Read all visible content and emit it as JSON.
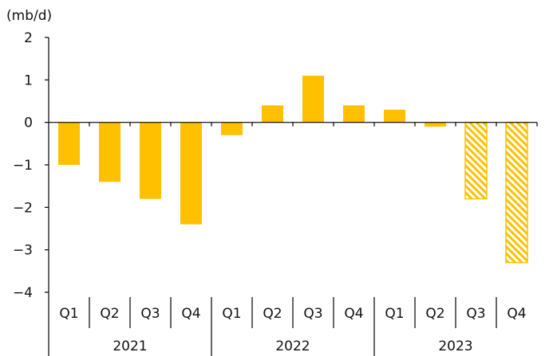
{
  "chart_data": {
    "type": "bar",
    "unit_label": "(mb/d)",
    "title": "",
    "xlabel": "",
    "ylabel": "",
    "ylim": [
      -4,
      2
    ],
    "yticks": [
      2,
      1,
      0,
      -1,
      -2,
      -3,
      -4
    ],
    "grid": false,
    "legend": "none",
    "categories": [
      "Q1",
      "Q2",
      "Q3",
      "Q4",
      "Q1",
      "Q2",
      "Q3",
      "Q4",
      "Q1",
      "Q2",
      "Q3",
      "Q4"
    ],
    "years": [
      {
        "label": "2021",
        "quarters": 4
      },
      {
        "label": "2022",
        "quarters": 4
      },
      {
        "label": "2023",
        "quarters": 4
      }
    ],
    "values": [
      -1.0,
      -1.4,
      -1.8,
      -2.4,
      -0.3,
      0.4,
      1.1,
      0.4,
      0.3,
      -0.1,
      -1.8,
      -3.3
    ],
    "hatched": [
      false,
      false,
      false,
      false,
      false,
      false,
      false,
      false,
      false,
      false,
      true,
      true
    ],
    "colors": {
      "bar": "#FFC000",
      "axis": "#000000",
      "hatch_bg": "#ffffff"
    }
  }
}
